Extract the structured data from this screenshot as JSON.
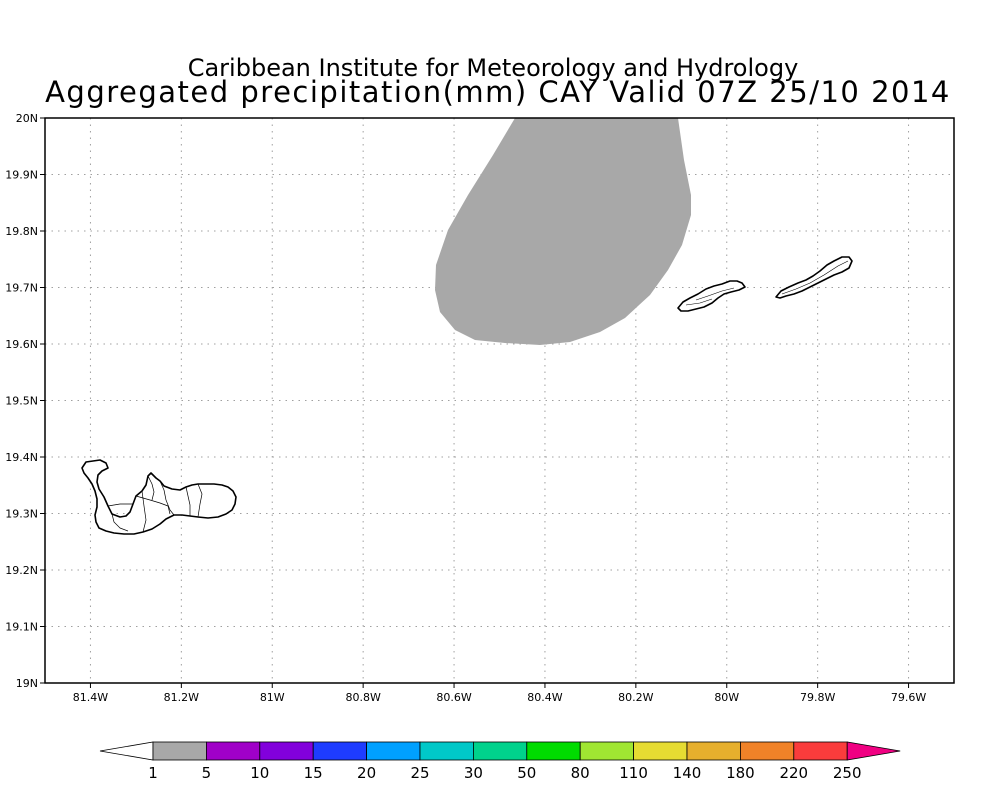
{
  "title": {
    "line1": "Caribbean Institute for Meteorology and Hydrology",
    "line2": "Aggregated precipitation(mm) CAY Valid 07Z 25/10 2014"
  },
  "map": {
    "lon_range": [
      -81.5,
      -79.5
    ],
    "lat_range": [
      19.0,
      20.0
    ],
    "lon_ticks": [
      {
        "value": -81.4,
        "label": "81.4W"
      },
      {
        "value": -81.2,
        "label": "81.2W"
      },
      {
        "value": -81.0,
        "label": "81W"
      },
      {
        "value": -80.8,
        "label": "80.8W"
      },
      {
        "value": -80.6,
        "label": "80.6W"
      },
      {
        "value": -80.4,
        "label": "80.4W"
      },
      {
        "value": -80.2,
        "label": "80.2W"
      },
      {
        "value": -80.0,
        "label": "80W"
      },
      {
        "value": -79.8,
        "label": "79.8W"
      },
      {
        "value": -79.6,
        "label": "79.6W"
      }
    ],
    "lat_ticks": [
      {
        "value": 19.0,
        "label": "19N"
      },
      {
        "value": 19.1,
        "label": "19.1N"
      },
      {
        "value": 19.2,
        "label": "19.2N"
      },
      {
        "value": 19.3,
        "label": "19.3N"
      },
      {
        "value": 19.4,
        "label": "19.4N"
      },
      {
        "value": 19.5,
        "label": "19.5N"
      },
      {
        "value": 19.6,
        "label": "19.6N"
      },
      {
        "value": 19.7,
        "label": "19.7N"
      },
      {
        "value": 19.8,
        "label": "19.8N"
      },
      {
        "value": 19.9,
        "label": "19.9N"
      },
      {
        "value": 20.0,
        "label": "20N"
      }
    ],
    "grid": true,
    "precip_area": {
      "category": "1-5",
      "color": "#a8a8a8"
    }
  },
  "colorbar": {
    "labels": [
      "1",
      "5",
      "10",
      "15",
      "20",
      "25",
      "30",
      "50",
      "80",
      "110",
      "140",
      "180",
      "220",
      "250"
    ],
    "colors": [
      "#a8a8a8",
      "#a000c8",
      "#8200dc",
      "#1e3cff",
      "#00a0ff",
      "#00c8c8",
      "#00d28c",
      "#00dc00",
      "#a0e632",
      "#e6dc32",
      "#e6af2d",
      "#f08228",
      "#fa3c3c",
      "#f00082"
    ],
    "under_color": "#ffffff",
    "over_color": "#f00082"
  }
}
